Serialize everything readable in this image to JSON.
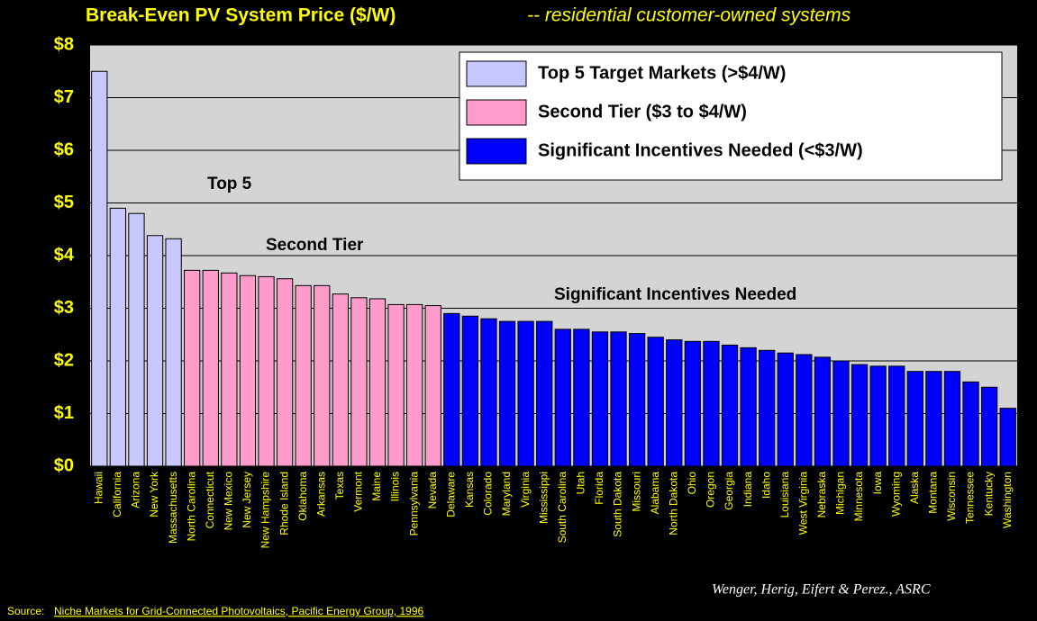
{
  "chart_data": {
    "type": "bar",
    "title": "Break-Even PV System Price ($/W)",
    "subtitle": "-- residential customer-owned systems",
    "categories": [
      "Hawaii",
      "California",
      "Arizona",
      "New York",
      "Massachusetts",
      "North Carolina",
      "Connecticut",
      "New Mexico",
      "New Jersey",
      "New Hampshire",
      "Rhode Island",
      "Oklahoma",
      "Arkansas",
      "Texas",
      "Vermont",
      "Maine",
      "Illinois",
      "Pennsylvania",
      "Nevada",
      "Delaware",
      "Kansas",
      "Colorado",
      "Maryland",
      "Virginia",
      "Mississippi",
      "South Carolina",
      "Utah",
      "Florida",
      "South Dakota",
      "Missouri",
      "Alabama",
      "North Dakota",
      "Ohio",
      "Oregon",
      "Georgia",
      "Indiana",
      "Idaho",
      "Louisiana",
      "West Virginia",
      "Nebraska",
      "Michigan",
      "Minnesota",
      "Iowa",
      "Wyoming",
      "Alaska",
      "Montana",
      "Wisconsin",
      "Tennessee",
      "Kentucky",
      "Washington"
    ],
    "series": [
      {
        "name": "Top 5 Target Markets (>$4/W)",
        "color": "#c8c8ff",
        "values": [
          7.5,
          4.9,
          4.8,
          4.38,
          4.32,
          null,
          null,
          null,
          null,
          null,
          null,
          null,
          null,
          null,
          null,
          null,
          null,
          null,
          null,
          null,
          null,
          null,
          null,
          null,
          null,
          null,
          null,
          null,
          null,
          null,
          null,
          null,
          null,
          null,
          null,
          null,
          null,
          null,
          null,
          null,
          null,
          null,
          null,
          null,
          null,
          null,
          null,
          null,
          null,
          null
        ]
      },
      {
        "name": "Second Tier ($3 to $4/W)",
        "color": "#ff9ccc",
        "values": [
          null,
          null,
          null,
          null,
          null,
          3.72,
          3.72,
          3.67,
          3.62,
          3.6,
          3.56,
          3.43,
          3.43,
          3.27,
          3.2,
          3.18,
          3.07,
          3.07,
          3.05,
          null,
          null,
          null,
          null,
          null,
          null,
          null,
          null,
          null,
          null,
          null,
          null,
          null,
          null,
          null,
          null,
          null,
          null,
          null,
          null,
          null,
          null,
          null,
          null,
          null,
          null,
          null,
          null,
          null,
          null,
          null
        ]
      },
      {
        "name": "Significant Incentives Needed (<$3/W)",
        "color": "#0000ff",
        "values": [
          null,
          null,
          null,
          null,
          null,
          null,
          null,
          null,
          null,
          null,
          null,
          null,
          null,
          null,
          null,
          null,
          null,
          null,
          null,
          2.9,
          2.85,
          2.8,
          2.75,
          2.75,
          2.75,
          2.6,
          2.6,
          2.55,
          2.55,
          2.52,
          2.45,
          2.4,
          2.37,
          2.37,
          2.3,
          2.25,
          2.2,
          2.15,
          2.12,
          2.07,
          2.0,
          1.93,
          1.9,
          1.9,
          1.8,
          1.8,
          1.8,
          1.6,
          1.5,
          1.1
        ]
      }
    ],
    "ylim": [
      0,
      8
    ],
    "yticks": [
      {
        "value": 0,
        "label": "$0"
      },
      {
        "value": 1,
        "label": "$1"
      },
      {
        "value": 2,
        "label": "$2"
      },
      {
        "value": 3,
        "label": "$3"
      },
      {
        "value": 4,
        "label": "$4"
      },
      {
        "value": 5,
        "label": "$5"
      },
      {
        "value": 6,
        "label": "$6"
      },
      {
        "value": 7,
        "label": "$7"
      },
      {
        "value": 8,
        "label": "$8"
      }
    ],
    "grid": true,
    "legend": "upper right",
    "annotations": [
      "Top 5",
      "Second Tier",
      "Significant Incentives Needed"
    ],
    "credit": "Wenger, Herig, Eifert & Perez., ASRC",
    "source_label": "Source:",
    "source": "Niche Markets for Grid-Connected Photovoltaics, Pacific Energy Group, 1996"
  }
}
